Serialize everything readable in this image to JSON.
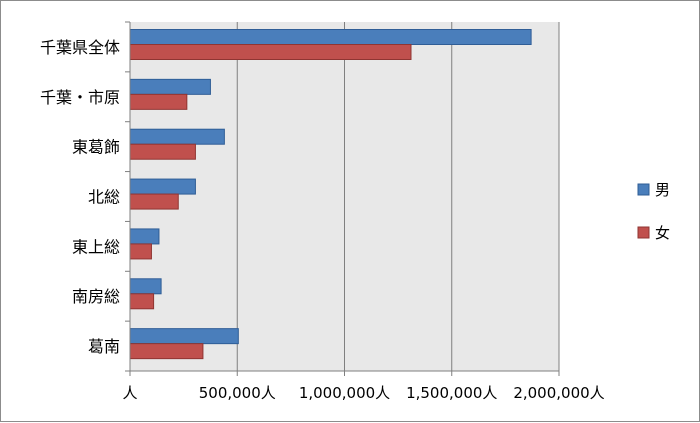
{
  "chart_data": {
    "type": "bar",
    "orientation": "horizontal",
    "categories": [
      "千葉県全体",
      "千葉・市原",
      "東葛飾",
      "北総",
      "東上総",
      "南房総",
      "葛南"
    ],
    "series": [
      {
        "name": "男",
        "color": "#4a7ebb",
        "values": [
          1870000,
          375000,
          440000,
          305000,
          135000,
          145000,
          505000
        ]
      },
      {
        "name": "女",
        "color": "#c0504d",
        "values": [
          1310000,
          265000,
          305000,
          225000,
          100000,
          110000,
          340000
        ]
      }
    ],
    "x_ticks": [
      "人",
      "500,000人",
      "1,000,000人",
      "1,500,000人",
      "2,000,000人"
    ],
    "xlim": [
      0,
      2000000
    ],
    "grid": true,
    "legend_position": "right",
    "plot_background": "#e8e8e8",
    "gridline_color": "#7f7f7f"
  }
}
